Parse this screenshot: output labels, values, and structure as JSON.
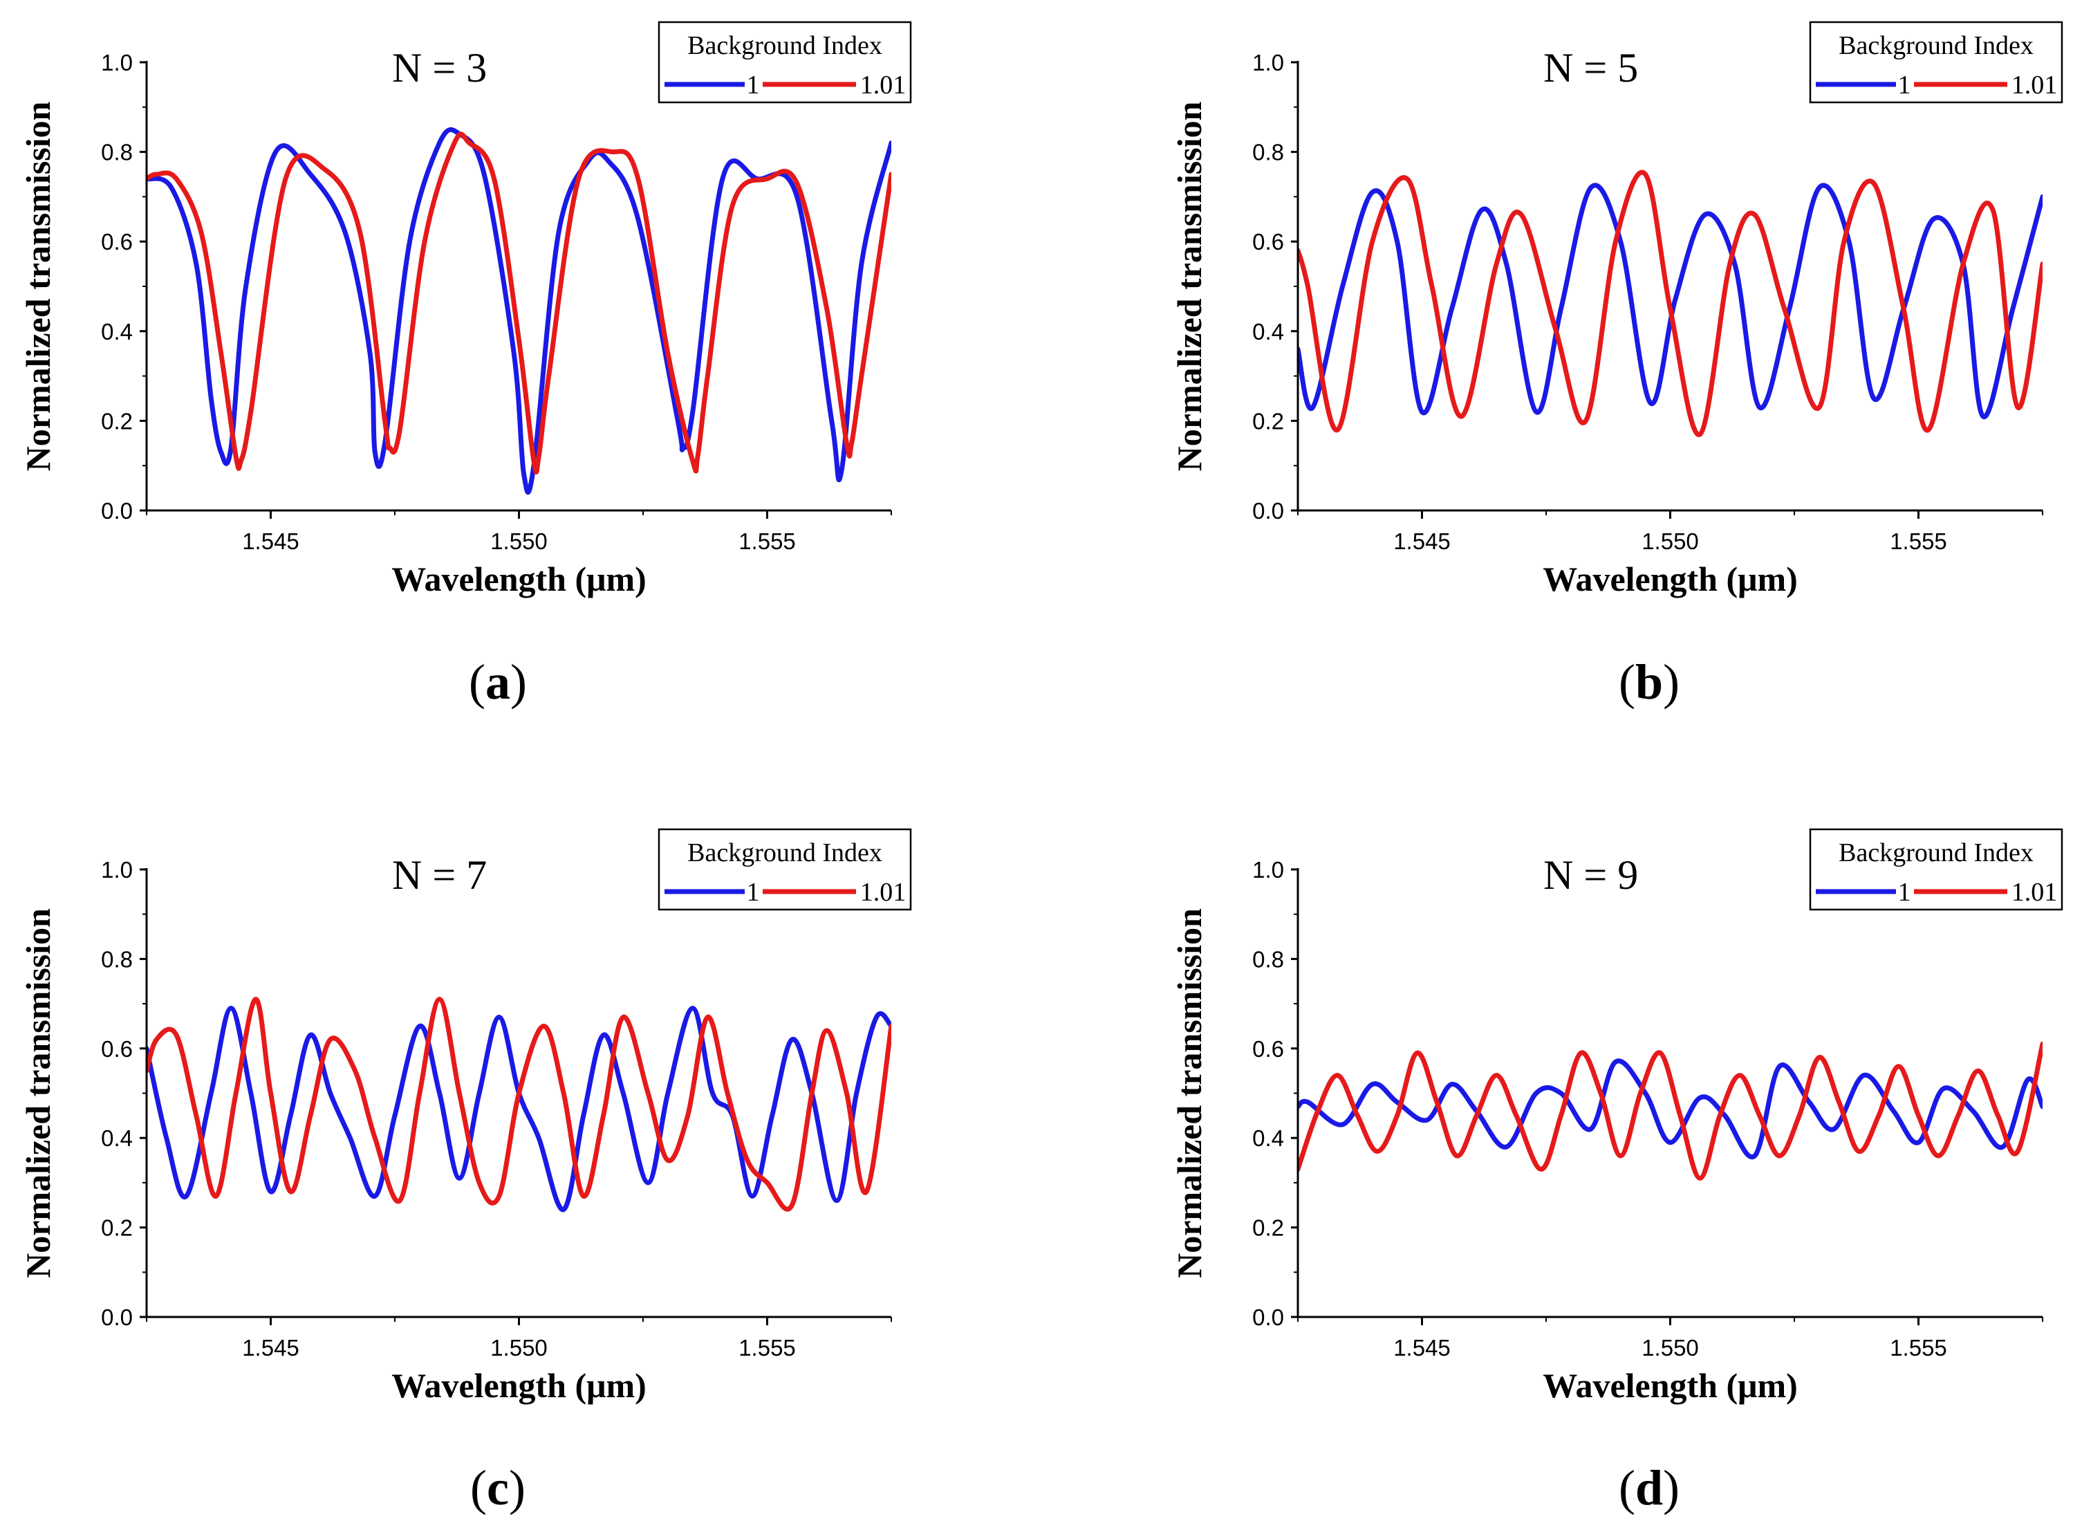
{
  "figure": {
    "captions": [
      "(a)",
      "(b)",
      "(c)",
      "(d)"
    ],
    "captionLetters": [
      "a",
      "b",
      "c",
      "d"
    ]
  },
  "colors": {
    "series1": "#1a1ae6",
    "series2": "#e61a1a",
    "axis": "#000000"
  },
  "chart_data": [
    {
      "type": "line",
      "title": "N = 3",
      "xlabel": "Wavelength (μm)",
      "ylabel": "Normalized transmission",
      "xlim": [
        1.5425,
        1.5575
      ],
      "ylim": [
        0.0,
        1.0
      ],
      "xticks": [
        1.545,
        1.55,
        1.555
      ],
      "xtick_labels": [
        "1.545",
        "1.550",
        "1.555"
      ],
      "yticks": [
        0.0,
        0.2,
        0.4,
        0.6,
        0.8,
        1.0
      ],
      "ytick_labels": [
        "0.0",
        "0.2",
        "0.4",
        "0.6",
        "0.8",
        "1.0"
      ],
      "legend": {
        "title": "Background Index",
        "position": "top-right"
      },
      "series": [
        {
          "name": "1",
          "color": "#1a1ae6",
          "x": [
            1.5425,
            1.543,
            1.5435,
            1.5438,
            1.544,
            1.5442,
            1.5445,
            1.5451,
            1.5458,
            1.5465,
            1.547,
            1.5471,
            1.5473,
            1.5478,
            1.5484,
            1.5488,
            1.5493,
            1.5499,
            1.5501,
            1.5503,
            1.5508,
            1.5514,
            1.5518,
            1.5524,
            1.5532,
            1.5533,
            1.5535,
            1.5541,
            1.5548,
            1.5556,
            1.5563,
            1.5565,
            1.5569,
            1.5575
          ],
          "y": [
            0.74,
            0.72,
            0.55,
            0.25,
            0.13,
            0.14,
            0.5,
            0.8,
            0.75,
            0.62,
            0.35,
            0.13,
            0.15,
            0.6,
            0.82,
            0.84,
            0.75,
            0.35,
            0.08,
            0.1,
            0.62,
            0.78,
            0.78,
            0.65,
            0.2,
            0.14,
            0.22,
            0.74,
            0.74,
            0.7,
            0.2,
            0.09,
            0.55,
            0.82
          ]
        },
        {
          "name": "1.01",
          "color": "#e61a1a",
          "x": [
            1.5425,
            1.5427,
            1.5431,
            1.5436,
            1.544,
            1.5443,
            1.5444,
            1.5446,
            1.5453,
            1.5461,
            1.5468,
            1.5473,
            1.5474,
            1.5476,
            1.5481,
            1.5487,
            1.549,
            1.5495,
            1.55,
            1.5503,
            1.5504,
            1.5506,
            1.5512,
            1.5519,
            1.5524,
            1.553,
            1.5535,
            1.5536,
            1.5538,
            1.5543,
            1.555,
            1.5556,
            1.5562,
            1.5566,
            1.5567,
            1.5569,
            1.5575
          ],
          "y": [
            0.74,
            0.75,
            0.74,
            0.62,
            0.35,
            0.12,
            0.11,
            0.22,
            0.74,
            0.76,
            0.62,
            0.2,
            0.14,
            0.18,
            0.6,
            0.82,
            0.82,
            0.74,
            0.38,
            0.11,
            0.12,
            0.3,
            0.74,
            0.8,
            0.74,
            0.35,
            0.11,
            0.12,
            0.3,
            0.68,
            0.74,
            0.73,
            0.45,
            0.15,
            0.15,
            0.3,
            0.75
          ]
        }
      ]
    },
    {
      "type": "line",
      "title": "N = 5",
      "xlabel": "Wavelength (μm)",
      "ylabel": "Normalized transmission",
      "xlim": [
        1.5425,
        1.5575
      ],
      "ylim": [
        0.0,
        1.0
      ],
      "xticks": [
        1.545,
        1.55,
        1.555
      ],
      "xtick_labels": [
        "1.545",
        "1.550",
        "1.555"
      ],
      "yticks": [
        0.0,
        0.2,
        0.4,
        0.6,
        0.8,
        1.0
      ],
      "ytick_labels": [
        "0.0",
        "0.2",
        "0.4",
        "0.6",
        "0.8",
        "1.0"
      ],
      "legend": {
        "title": "Background Index",
        "position": "top-right"
      },
      "series": [
        {
          "name": "1",
          "color": "#1a1ae6",
          "x": [
            1.5425,
            1.5428,
            1.5434,
            1.544,
            1.5445,
            1.545,
            1.5456,
            1.5462,
            1.5467,
            1.5473,
            1.5478,
            1.5484,
            1.549,
            1.5496,
            1.5501,
            1.5507,
            1.5513,
            1.5518,
            1.5524,
            1.553,
            1.5536,
            1.5541,
            1.5547,
            1.5553,
            1.5559,
            1.5563,
            1.5569,
            1.5575
          ],
          "y": [
            0.36,
            0.23,
            0.5,
            0.71,
            0.6,
            0.22,
            0.45,
            0.67,
            0.55,
            0.22,
            0.45,
            0.72,
            0.6,
            0.24,
            0.47,
            0.66,
            0.55,
            0.23,
            0.45,
            0.72,
            0.6,
            0.25,
            0.45,
            0.65,
            0.55,
            0.21,
            0.45,
            0.7
          ]
        },
        {
          "name": "1.01",
          "color": "#e61a1a",
          "x": [
            1.5425,
            1.5427,
            1.5433,
            1.544,
            1.5447,
            1.5452,
            1.5458,
            1.5465,
            1.547,
            1.5477,
            1.5483,
            1.5489,
            1.5495,
            1.55,
            1.5506,
            1.5512,
            1.5517,
            1.5523,
            1.553,
            1.5535,
            1.5541,
            1.5547,
            1.5552,
            1.5559,
            1.5565,
            1.557,
            1.5575
          ],
          "y": [
            0.58,
            0.5,
            0.18,
            0.6,
            0.74,
            0.5,
            0.21,
            0.55,
            0.66,
            0.4,
            0.2,
            0.6,
            0.75,
            0.45,
            0.17,
            0.55,
            0.66,
            0.45,
            0.23,
            0.6,
            0.73,
            0.45,
            0.18,
            0.55,
            0.67,
            0.23,
            0.55
          ]
        }
      ]
    },
    {
      "type": "line",
      "title": "N = 7",
      "xlabel": "Wavelength (μm)",
      "ylabel": "Normalized transmission",
      "xlim": [
        1.5425,
        1.5575
      ],
      "ylim": [
        0.0,
        1.0
      ],
      "xticks": [
        1.545,
        1.55,
        1.555
      ],
      "xtick_labels": [
        "1.545",
        "1.550",
        "1.555"
      ],
      "yticks": [
        0.0,
        0.2,
        0.4,
        0.6,
        0.8,
        1.0
      ],
      "ytick_labels": [
        "0.0",
        "0.2",
        "0.4",
        "0.6",
        "0.8",
        "1.0"
      ],
      "legend": {
        "title": "Background Index",
        "position": "top-right"
      },
      "series": [
        {
          "name": "1",
          "color": "#1a1ae6",
          "x": [
            1.5425,
            1.5429,
            1.5433,
            1.5438,
            1.5442,
            1.5446,
            1.545,
            1.5454,
            1.5458,
            1.5462,
            1.5466,
            1.5471,
            1.5475,
            1.548,
            1.5484,
            1.5488,
            1.5492,
            1.5496,
            1.55,
            1.5504,
            1.5509,
            1.5513,
            1.5517,
            1.5521,
            1.5526,
            1.553,
            1.5535,
            1.5539,
            1.5543,
            1.5547,
            1.5551,
            1.5555,
            1.5559,
            1.5564,
            1.5568,
            1.5572,
            1.5575
          ],
          "y": [
            0.6,
            0.4,
            0.27,
            0.5,
            0.69,
            0.5,
            0.28,
            0.45,
            0.63,
            0.5,
            0.4,
            0.27,
            0.45,
            0.65,
            0.5,
            0.31,
            0.5,
            0.67,
            0.5,
            0.4,
            0.24,
            0.45,
            0.63,
            0.5,
            0.3,
            0.5,
            0.69,
            0.5,
            0.45,
            0.27,
            0.45,
            0.62,
            0.5,
            0.26,
            0.5,
            0.67,
            0.65
          ]
        },
        {
          "name": "1.01",
          "color": "#e61a1a",
          "x": [
            1.5425,
            1.5427,
            1.5431,
            1.5435,
            1.5439,
            1.5443,
            1.5447,
            1.545,
            1.5454,
            1.5458,
            1.5462,
            1.5467,
            1.5471,
            1.5476,
            1.548,
            1.5484,
            1.5488,
            1.5492,
            1.5496,
            1.55,
            1.5505,
            1.5509,
            1.5513,
            1.5517,
            1.5521,
            1.5526,
            1.553,
            1.5534,
            1.5538,
            1.5542,
            1.5546,
            1.555,
            1.5555,
            1.5559,
            1.5562,
            1.5566,
            1.557,
            1.5575
          ],
          "y": [
            0.55,
            0.62,
            0.63,
            0.45,
            0.27,
            0.5,
            0.71,
            0.5,
            0.28,
            0.45,
            0.62,
            0.55,
            0.4,
            0.26,
            0.5,
            0.71,
            0.5,
            0.3,
            0.27,
            0.5,
            0.65,
            0.5,
            0.27,
            0.45,
            0.67,
            0.5,
            0.35,
            0.45,
            0.67,
            0.5,
            0.35,
            0.3,
            0.25,
            0.5,
            0.64,
            0.5,
            0.28,
            0.65
          ]
        }
      ]
    },
    {
      "type": "line",
      "title": "N = 9",
      "xlabel": "Wavelength (μm)",
      "ylabel": "Normalized transmission",
      "xlim": [
        1.5425,
        1.5575
      ],
      "ylim": [
        0.0,
        1.0
      ],
      "xticks": [
        1.545,
        1.55,
        1.555
      ],
      "xtick_labels": [
        "1.545",
        "1.550",
        "1.555"
      ],
      "yticks": [
        0.0,
        0.2,
        0.4,
        0.6,
        0.8,
        1.0
      ],
      "ytick_labels": [
        "0.0",
        "0.2",
        "0.4",
        "0.6",
        "0.8",
        "1.0"
      ],
      "legend": {
        "title": "Background Index",
        "position": "top-right"
      },
      "series": [
        {
          "name": "1",
          "color": "#1a1ae6",
          "x": [
            1.5425,
            1.5427,
            1.5434,
            1.544,
            1.5445,
            1.5451,
            1.5456,
            1.5461,
            1.5467,
            1.5473,
            1.5478,
            1.5484,
            1.5489,
            1.5495,
            1.55,
            1.5506,
            1.5511,
            1.5517,
            1.5522,
            1.5528,
            1.5533,
            1.5539,
            1.5545,
            1.555,
            1.5555,
            1.5561,
            1.5567,
            1.5572,
            1.5575
          ],
          "y": [
            0.47,
            0.48,
            0.43,
            0.52,
            0.48,
            0.44,
            0.52,
            0.46,
            0.38,
            0.5,
            0.5,
            0.42,
            0.57,
            0.5,
            0.39,
            0.49,
            0.45,
            0.36,
            0.56,
            0.48,
            0.42,
            0.54,
            0.46,
            0.39,
            0.51,
            0.46,
            0.38,
            0.53,
            0.47
          ]
        },
        {
          "name": "1.01",
          "color": "#e61a1a",
          "x": [
            1.5425,
            1.5429,
            1.5433,
            1.5437,
            1.5441,
            1.5445,
            1.5449,
            1.5453,
            1.5457,
            1.5461,
            1.5465,
            1.5469,
            1.5474,
            1.5478,
            1.5482,
            1.5486,
            1.549,
            1.5494,
            1.5498,
            1.5502,
            1.5506,
            1.551,
            1.5514,
            1.5518,
            1.5522,
            1.5526,
            1.553,
            1.5534,
            1.5538,
            1.5542,
            1.5546,
            1.555,
            1.5554,
            1.5558,
            1.5562,
            1.5566,
            1.557,
            1.5575
          ],
          "y": [
            0.33,
            0.46,
            0.54,
            0.45,
            0.37,
            0.45,
            0.59,
            0.48,
            0.36,
            0.45,
            0.54,
            0.45,
            0.33,
            0.45,
            0.59,
            0.5,
            0.36,
            0.5,
            0.59,
            0.45,
            0.31,
            0.45,
            0.54,
            0.45,
            0.36,
            0.45,
            0.58,
            0.48,
            0.37,
            0.45,
            0.56,
            0.45,
            0.36,
            0.45,
            0.55,
            0.45,
            0.37,
            0.61
          ]
        }
      ]
    }
  ]
}
